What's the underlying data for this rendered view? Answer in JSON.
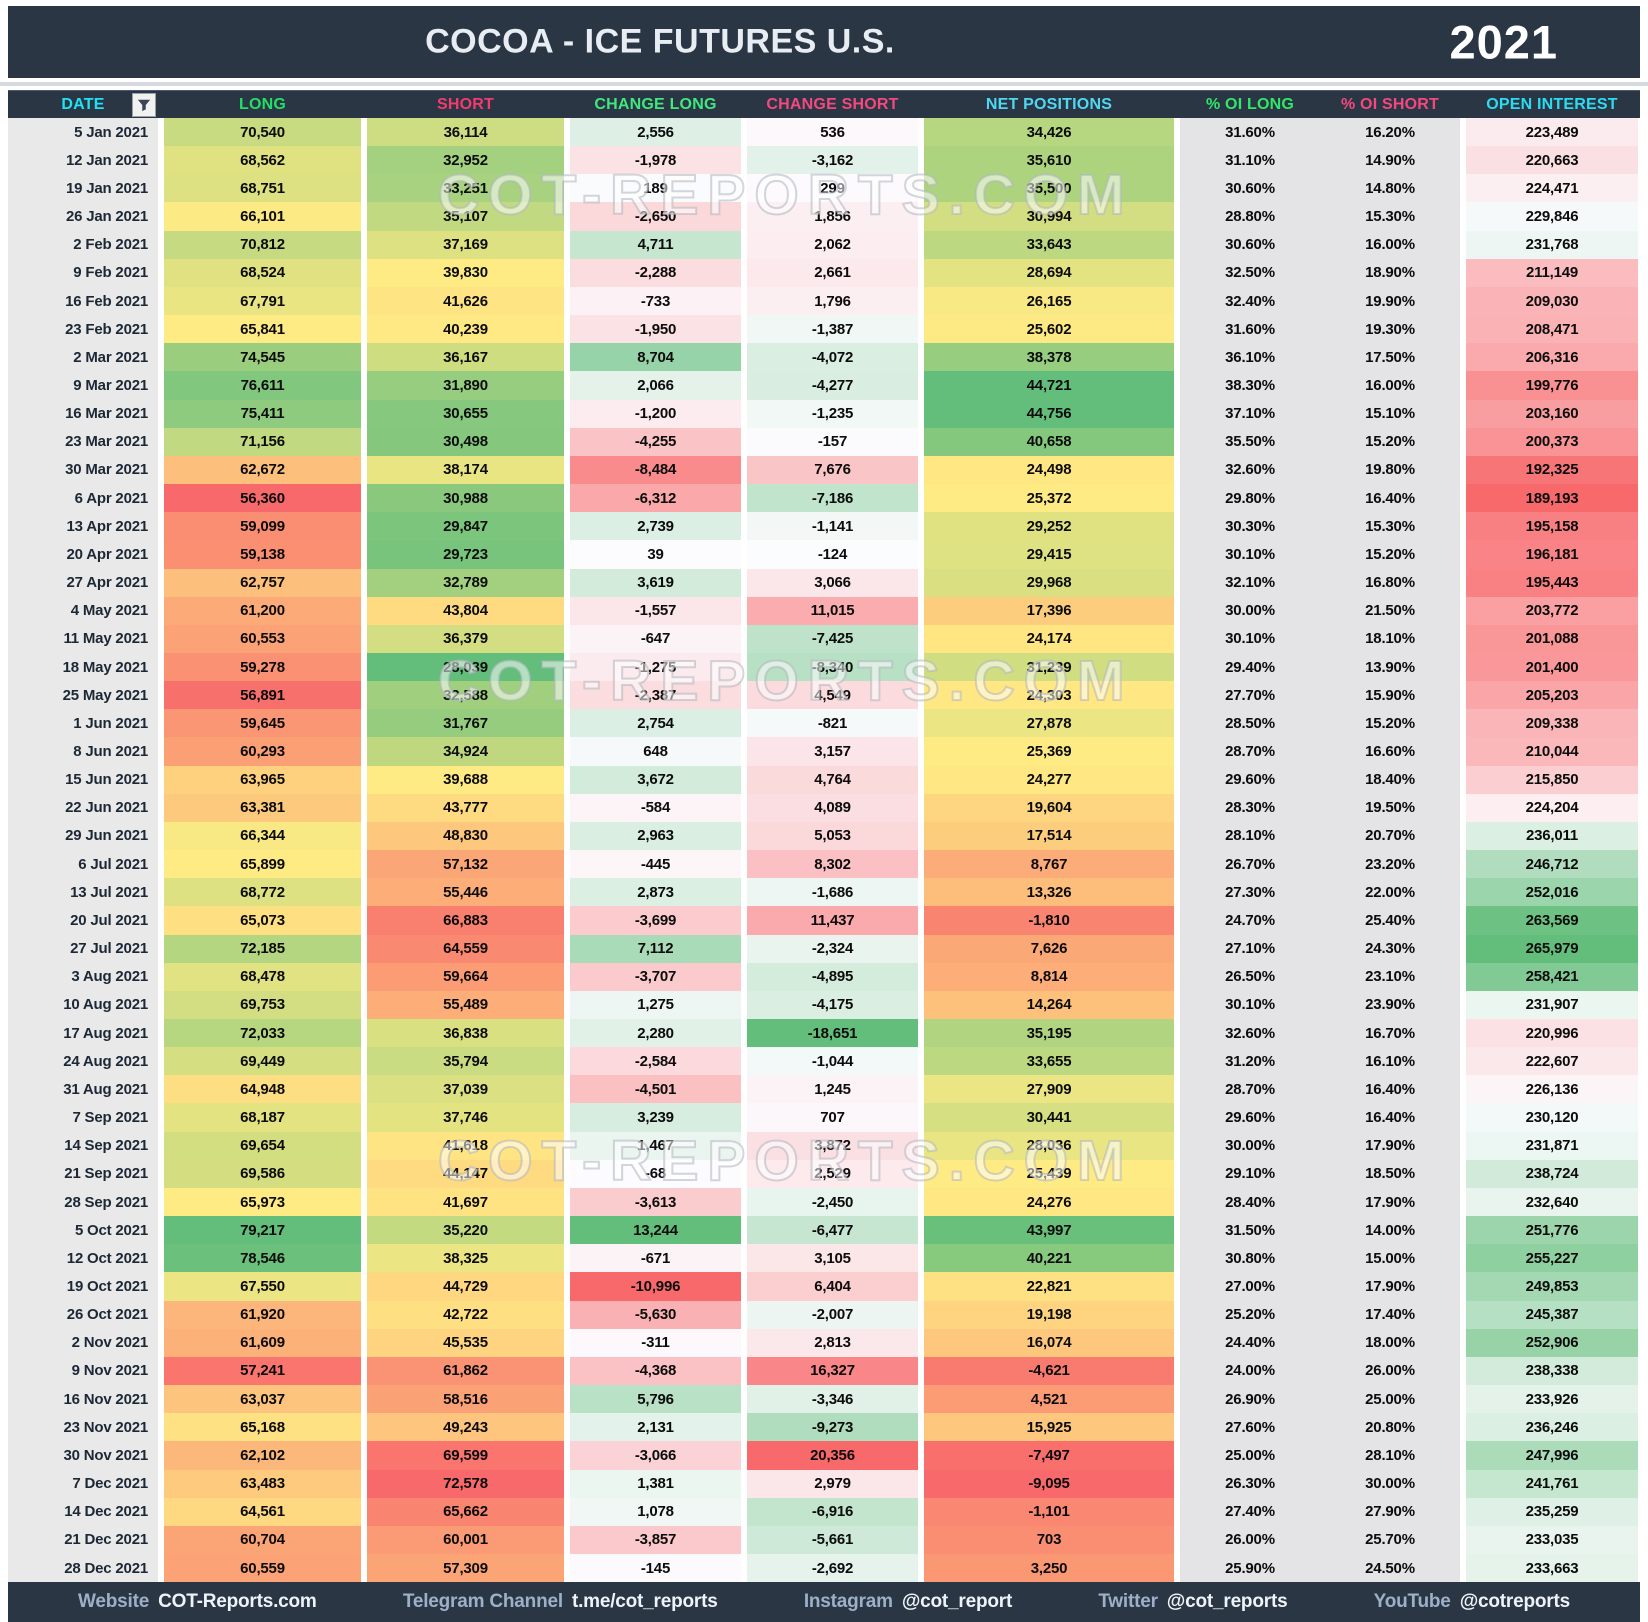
{
  "header": {
    "title": "COCOA - ICE FUTURES U.S.",
    "year": "2021",
    "filter_icon": "funnel-icon"
  },
  "columns": [
    {
      "key": "date",
      "label": "DATE",
      "color": "#1fe3f5"
    },
    {
      "key": "long",
      "label": "LONG",
      "color": "#22df66"
    },
    {
      "key": "short",
      "label": "SHORT",
      "color": "#f43a6e"
    },
    {
      "key": "change_long",
      "label": "CHANGE LONG",
      "color": "#3fe87d"
    },
    {
      "key": "change_short",
      "label": "CHANGE SHORT",
      "color": "#f4487e"
    },
    {
      "key": "net",
      "label": "NET POSITIONS",
      "color": "#4fd8f2"
    },
    {
      "key": "oi_long",
      "label": "% OI LONG",
      "color": "#2fe768"
    },
    {
      "key": "oi_short",
      "label": "% OI SHORT",
      "color": "#f4487e"
    },
    {
      "key": "open_interest",
      "label": "OPEN INTEREST",
      "color": "#2bdcf0"
    }
  ],
  "watermark": {
    "text": "COT-REPORTS.COM"
  },
  "colors": {
    "navy": "#2b3645",
    "scale_red": "#f8696b",
    "scale_yellow": "#ffeb84",
    "scale_green": "#63be7b",
    "scale_white": "#fcfcff",
    "date_col_bg": "#e9e9e9",
    "pct_col_bg": "#e4e4e6",
    "footer_label": "#9db0c8",
    "footer_value": "#eef3f9"
  },
  "rows": [
    {
      "date": "5 Jan 2021",
      "long": 70540,
      "short": 36114,
      "change_long": 2556,
      "change_short": 536,
      "net": 34426,
      "oi_long": "31.60%",
      "oi_short": "16.20%",
      "open_interest": 223489
    },
    {
      "date": "12 Jan 2021",
      "long": 68562,
      "short": 32952,
      "change_long": -1978,
      "change_short": -3162,
      "net": 35610,
      "oi_long": "31.10%",
      "oi_short": "14.90%",
      "open_interest": 220663
    },
    {
      "date": "19 Jan 2021",
      "long": 68751,
      "short": 33251,
      "change_long": 189,
      "change_short": 299,
      "net": 35500,
      "oi_long": "30.60%",
      "oi_short": "14.80%",
      "open_interest": 224471
    },
    {
      "date": "26 Jan 2021",
      "long": 66101,
      "short": 35107,
      "change_long": -2650,
      "change_short": 1856,
      "net": 30994,
      "oi_long": "28.80%",
      "oi_short": "15.30%",
      "open_interest": 229846
    },
    {
      "date": "2 Feb 2021",
      "long": 70812,
      "short": 37169,
      "change_long": 4711,
      "change_short": 2062,
      "net": 33643,
      "oi_long": "30.60%",
      "oi_short": "16.00%",
      "open_interest": 231768
    },
    {
      "date": "9 Feb 2021",
      "long": 68524,
      "short": 39830,
      "change_long": -2288,
      "change_short": 2661,
      "net": 28694,
      "oi_long": "32.50%",
      "oi_short": "18.90%",
      "open_interest": 211149
    },
    {
      "date": "16 Feb 2021",
      "long": 67791,
      "short": 41626,
      "change_long": -733,
      "change_short": 1796,
      "net": 26165,
      "oi_long": "32.40%",
      "oi_short": "19.90%",
      "open_interest": 209030
    },
    {
      "date": "23 Feb 2021",
      "long": 65841,
      "short": 40239,
      "change_long": -1950,
      "change_short": -1387,
      "net": 25602,
      "oi_long": "31.60%",
      "oi_short": "19.30%",
      "open_interest": 208471
    },
    {
      "date": "2 Mar 2021",
      "long": 74545,
      "short": 36167,
      "change_long": 8704,
      "change_short": -4072,
      "net": 38378,
      "oi_long": "36.10%",
      "oi_short": "17.50%",
      "open_interest": 206316
    },
    {
      "date": "9 Mar 2021",
      "long": 76611,
      "short": 31890,
      "change_long": 2066,
      "change_short": -4277,
      "net": 44721,
      "oi_long": "38.30%",
      "oi_short": "16.00%",
      "open_interest": 199776
    },
    {
      "date": "16 Mar 2021",
      "long": 75411,
      "short": 30655,
      "change_long": -1200,
      "change_short": -1235,
      "net": 44756,
      "oi_long": "37.10%",
      "oi_short": "15.10%",
      "open_interest": 203160
    },
    {
      "date": "23 Mar 2021",
      "long": 71156,
      "short": 30498,
      "change_long": -4255,
      "change_short": -157,
      "net": 40658,
      "oi_long": "35.50%",
      "oi_short": "15.20%",
      "open_interest": 200373
    },
    {
      "date": "30 Mar 2021",
      "long": 62672,
      "short": 38174,
      "change_long": -8484,
      "change_short": 7676,
      "net": 24498,
      "oi_long": "32.60%",
      "oi_short": "19.80%",
      "open_interest": 192325
    },
    {
      "date": "6 Apr 2021",
      "long": 56360,
      "short": 30988,
      "change_long": -6312,
      "change_short": -7186,
      "net": 25372,
      "oi_long": "29.80%",
      "oi_short": "16.40%",
      "open_interest": 189193
    },
    {
      "date": "13 Apr 2021",
      "long": 59099,
      "short": 29847,
      "change_long": 2739,
      "change_short": -1141,
      "net": 29252,
      "oi_long": "30.30%",
      "oi_short": "15.30%",
      "open_interest": 195158
    },
    {
      "date": "20 Apr 2021",
      "long": 59138,
      "short": 29723,
      "change_long": 39,
      "change_short": -124,
      "net": 29415,
      "oi_long": "30.10%",
      "oi_short": "15.20%",
      "open_interest": 196181
    },
    {
      "date": "27 Apr 2021",
      "long": 62757,
      "short": 32789,
      "change_long": 3619,
      "change_short": 3066,
      "net": 29968,
      "oi_long": "32.10%",
      "oi_short": "16.80%",
      "open_interest": 195443
    },
    {
      "date": "4 May 2021",
      "long": 61200,
      "short": 43804,
      "change_long": -1557,
      "change_short": 11015,
      "net": 17396,
      "oi_long": "30.00%",
      "oi_short": "21.50%",
      "open_interest": 203772
    },
    {
      "date": "11 May 2021",
      "long": 60553,
      "short": 36379,
      "change_long": -647,
      "change_short": -7425,
      "net": 24174,
      "oi_long": "30.10%",
      "oi_short": "18.10%",
      "open_interest": 201088
    },
    {
      "date": "18 May 2021",
      "long": 59278,
      "short": 28039,
      "change_long": -1275,
      "change_short": -8340,
      "net": 31239,
      "oi_long": "29.40%",
      "oi_short": "13.90%",
      "open_interest": 201400
    },
    {
      "date": "25 May 2021",
      "long": 56891,
      "short": 32588,
      "change_long": -2387,
      "change_short": 4549,
      "net": 24303,
      "oi_long": "27.70%",
      "oi_short": "15.90%",
      "open_interest": 205203
    },
    {
      "date": "1 Jun 2021",
      "long": 59645,
      "short": 31767,
      "change_long": 2754,
      "change_short": -821,
      "net": 27878,
      "oi_long": "28.50%",
      "oi_short": "15.20%",
      "open_interest": 209338
    },
    {
      "date": "8 Jun 2021",
      "long": 60293,
      "short": 34924,
      "change_long": 648,
      "change_short": 3157,
      "net": 25369,
      "oi_long": "28.70%",
      "oi_short": "16.60%",
      "open_interest": 210044
    },
    {
      "date": "15 Jun 2021",
      "long": 63965,
      "short": 39688,
      "change_long": 3672,
      "change_short": 4764,
      "net": 24277,
      "oi_long": "29.60%",
      "oi_short": "18.40%",
      "open_interest": 215850
    },
    {
      "date": "22 Jun 2021",
      "long": 63381,
      "short": 43777,
      "change_long": -584,
      "change_short": 4089,
      "net": 19604,
      "oi_long": "28.30%",
      "oi_short": "19.50%",
      "open_interest": 224204
    },
    {
      "date": "29 Jun 2021",
      "long": 66344,
      "short": 48830,
      "change_long": 2963,
      "change_short": 5053,
      "net": 17514,
      "oi_long": "28.10%",
      "oi_short": "20.70%",
      "open_interest": 236011
    },
    {
      "date": "6 Jul 2021",
      "long": 65899,
      "short": 57132,
      "change_long": -445,
      "change_short": 8302,
      "net": 8767,
      "oi_long": "26.70%",
      "oi_short": "23.20%",
      "open_interest": 246712
    },
    {
      "date": "13 Jul 2021",
      "long": 68772,
      "short": 55446,
      "change_long": 2873,
      "change_short": -1686,
      "net": 13326,
      "oi_long": "27.30%",
      "oi_short": "22.00%",
      "open_interest": 252016
    },
    {
      "date": "20 Jul 2021",
      "long": 65073,
      "short": 66883,
      "change_long": -3699,
      "change_short": 11437,
      "net": -1810,
      "oi_long": "24.70%",
      "oi_short": "25.40%",
      "open_interest": 263569
    },
    {
      "date": "27 Jul 2021",
      "long": 72185,
      "short": 64559,
      "change_long": 7112,
      "change_short": -2324,
      "net": 7626,
      "oi_long": "27.10%",
      "oi_short": "24.30%",
      "open_interest": 265979
    },
    {
      "date": "3 Aug 2021",
      "long": 68478,
      "short": 59664,
      "change_long": -3707,
      "change_short": -4895,
      "net": 8814,
      "oi_long": "26.50%",
      "oi_short": "23.10%",
      "open_interest": 258421
    },
    {
      "date": "10 Aug 2021",
      "long": 69753,
      "short": 55489,
      "change_long": 1275,
      "change_short": -4175,
      "net": 14264,
      "oi_long": "30.10%",
      "oi_short": "23.90%",
      "open_interest": 231907
    },
    {
      "date": "17 Aug 2021",
      "long": 72033,
      "short": 36838,
      "change_long": 2280,
      "change_short": -18651,
      "net": 35195,
      "oi_long": "32.60%",
      "oi_short": "16.70%",
      "open_interest": 220996
    },
    {
      "date": "24 Aug 2021",
      "long": 69449,
      "short": 35794,
      "change_long": -2584,
      "change_short": -1044,
      "net": 33655,
      "oi_long": "31.20%",
      "oi_short": "16.10%",
      "open_interest": 222607
    },
    {
      "date": "31 Aug 2021",
      "long": 64948,
      "short": 37039,
      "change_long": -4501,
      "change_short": 1245,
      "net": 27909,
      "oi_long": "28.70%",
      "oi_short": "16.40%",
      "open_interest": 226136
    },
    {
      "date": "7 Sep 2021",
      "long": 68187,
      "short": 37746,
      "change_long": 3239,
      "change_short": 707,
      "net": 30441,
      "oi_long": "29.60%",
      "oi_short": "16.40%",
      "open_interest": 230120
    },
    {
      "date": "14 Sep 2021",
      "long": 69654,
      "short": 41618,
      "change_long": 1467,
      "change_short": 3872,
      "net": 28036,
      "oi_long": "30.00%",
      "oi_short": "17.90%",
      "open_interest": 231871
    },
    {
      "date": "21 Sep 2021",
      "long": 69586,
      "short": 44147,
      "change_long": -68,
      "change_short": 2529,
      "net": 25439,
      "oi_long": "29.10%",
      "oi_short": "18.50%",
      "open_interest": 238724
    },
    {
      "date": "28 Sep 2021",
      "long": 65973,
      "short": 41697,
      "change_long": -3613,
      "change_short": -2450,
      "net": 24276,
      "oi_long": "28.40%",
      "oi_short": "17.90%",
      "open_interest": 232640
    },
    {
      "date": "5 Oct 2021",
      "long": 79217,
      "short": 35220,
      "change_long": 13244,
      "change_short": -6477,
      "net": 43997,
      "oi_long": "31.50%",
      "oi_short": "14.00%",
      "open_interest": 251776
    },
    {
      "date": "12 Oct 2021",
      "long": 78546,
      "short": 38325,
      "change_long": -671,
      "change_short": 3105,
      "net": 40221,
      "oi_long": "30.80%",
      "oi_short": "15.00%",
      "open_interest": 255227
    },
    {
      "date": "19 Oct 2021",
      "long": 67550,
      "short": 44729,
      "change_long": -10996,
      "change_short": 6404,
      "net": 22821,
      "oi_long": "27.00%",
      "oi_short": "17.90%",
      "open_interest": 249853
    },
    {
      "date": "26 Oct 2021",
      "long": 61920,
      "short": 42722,
      "change_long": -5630,
      "change_short": -2007,
      "net": 19198,
      "oi_long": "25.20%",
      "oi_short": "17.40%",
      "open_interest": 245387
    },
    {
      "date": "2 Nov 2021",
      "long": 61609,
      "short": 45535,
      "change_long": -311,
      "change_short": 2813,
      "net": 16074,
      "oi_long": "24.40%",
      "oi_short": "18.00%",
      "open_interest": 252906
    },
    {
      "date": "9 Nov 2021",
      "long": 57241,
      "short": 61862,
      "change_long": -4368,
      "change_short": 16327,
      "net": -4621,
      "oi_long": "24.00%",
      "oi_short": "26.00%",
      "open_interest": 238338
    },
    {
      "date": "16 Nov 2021",
      "long": 63037,
      "short": 58516,
      "change_long": 5796,
      "change_short": -3346,
      "net": 4521,
      "oi_long": "26.90%",
      "oi_short": "25.00%",
      "open_interest": 233926
    },
    {
      "date": "23 Nov 2021",
      "long": 65168,
      "short": 49243,
      "change_long": 2131,
      "change_short": -9273,
      "net": 15925,
      "oi_long": "27.60%",
      "oi_short": "20.80%",
      "open_interest": 236246
    },
    {
      "date": "30 Nov 2021",
      "long": 62102,
      "short": 69599,
      "change_long": -3066,
      "change_short": 20356,
      "net": -7497,
      "oi_long": "25.00%",
      "oi_short": "28.10%",
      "open_interest": 247996
    },
    {
      "date": "7 Dec 2021",
      "long": 63483,
      "short": 72578,
      "change_long": 1381,
      "change_short": 2979,
      "net": -9095,
      "oi_long": "26.30%",
      "oi_short": "30.00%",
      "open_interest": 241761
    },
    {
      "date": "14 Dec 2021",
      "long": 64561,
      "short": 65662,
      "change_long": 1078,
      "change_short": -6916,
      "net": -1101,
      "oi_long": "27.40%",
      "oi_short": "27.90%",
      "open_interest": 235259
    },
    {
      "date": "21 Dec 2021",
      "long": 60704,
      "short": 60001,
      "change_long": -3857,
      "change_short": -5661,
      "net": 703,
      "oi_long": "26.00%",
      "oi_short": "25.70%",
      "open_interest": 233035
    },
    {
      "date": "28 Dec 2021",
      "long": 60559,
      "short": 57309,
      "change_long": -145,
      "change_short": -2692,
      "net": 3250,
      "oi_long": "25.90%",
      "oi_short": "24.50%",
      "open_interest": 233663
    }
  ],
  "footer": {
    "items": [
      {
        "label": "Website",
        "value": "COT-Reports.com"
      },
      {
        "label": "Telegram Channel",
        "value": "t.me/cot_reports"
      },
      {
        "label": "Instagram",
        "value": "@cot_report"
      },
      {
        "label": "Twitter",
        "value": "@cot_reports"
      },
      {
        "label": "YouTube",
        "value": "@cotreports"
      }
    ]
  }
}
